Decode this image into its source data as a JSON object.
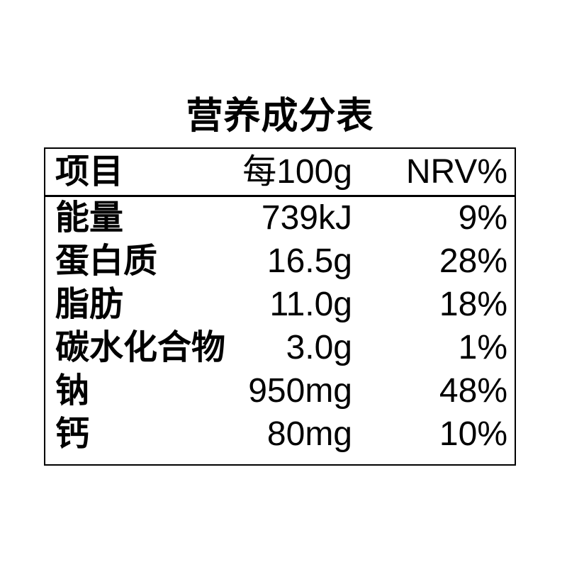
{
  "title": "营养成分表",
  "table": {
    "headers": {
      "item": "项目",
      "per100g": "每100g",
      "nrv": "NRV%"
    },
    "rows": [
      {
        "name": "能量",
        "per100g": "739kJ",
        "nrv": "9%"
      },
      {
        "name": "蛋白质",
        "per100g": "16.5g",
        "nrv": "28%"
      },
      {
        "name": "脂肪",
        "per100g": "11.0g",
        "nrv": "18%"
      },
      {
        "name": "碳水化合物",
        "per100g": "3.0g",
        "nrv": "1%"
      },
      {
        "name": "钠",
        "per100g": "950mg",
        "nrv": "48%"
      },
      {
        "name": "钙",
        "per100g": "80mg",
        "nrv": "10%"
      }
    ]
  },
  "chart_data": {
    "type": "table",
    "title": "营养成分表",
    "columns": [
      "项目",
      "每100g",
      "NRV%"
    ],
    "rows": [
      [
        "能量",
        "739kJ",
        "9%"
      ],
      [
        "蛋白质",
        "16.5g",
        "28%"
      ],
      [
        "脂肪",
        "11.0g",
        "18%"
      ],
      [
        "碳水化合物",
        "3.0g",
        "1%"
      ],
      [
        "钠",
        "950mg",
        "48%"
      ],
      [
        "钙",
        "80mg",
        "10%"
      ]
    ]
  },
  "colors": {
    "text": "#000000",
    "background": "#ffffff",
    "border": "#000000"
  }
}
